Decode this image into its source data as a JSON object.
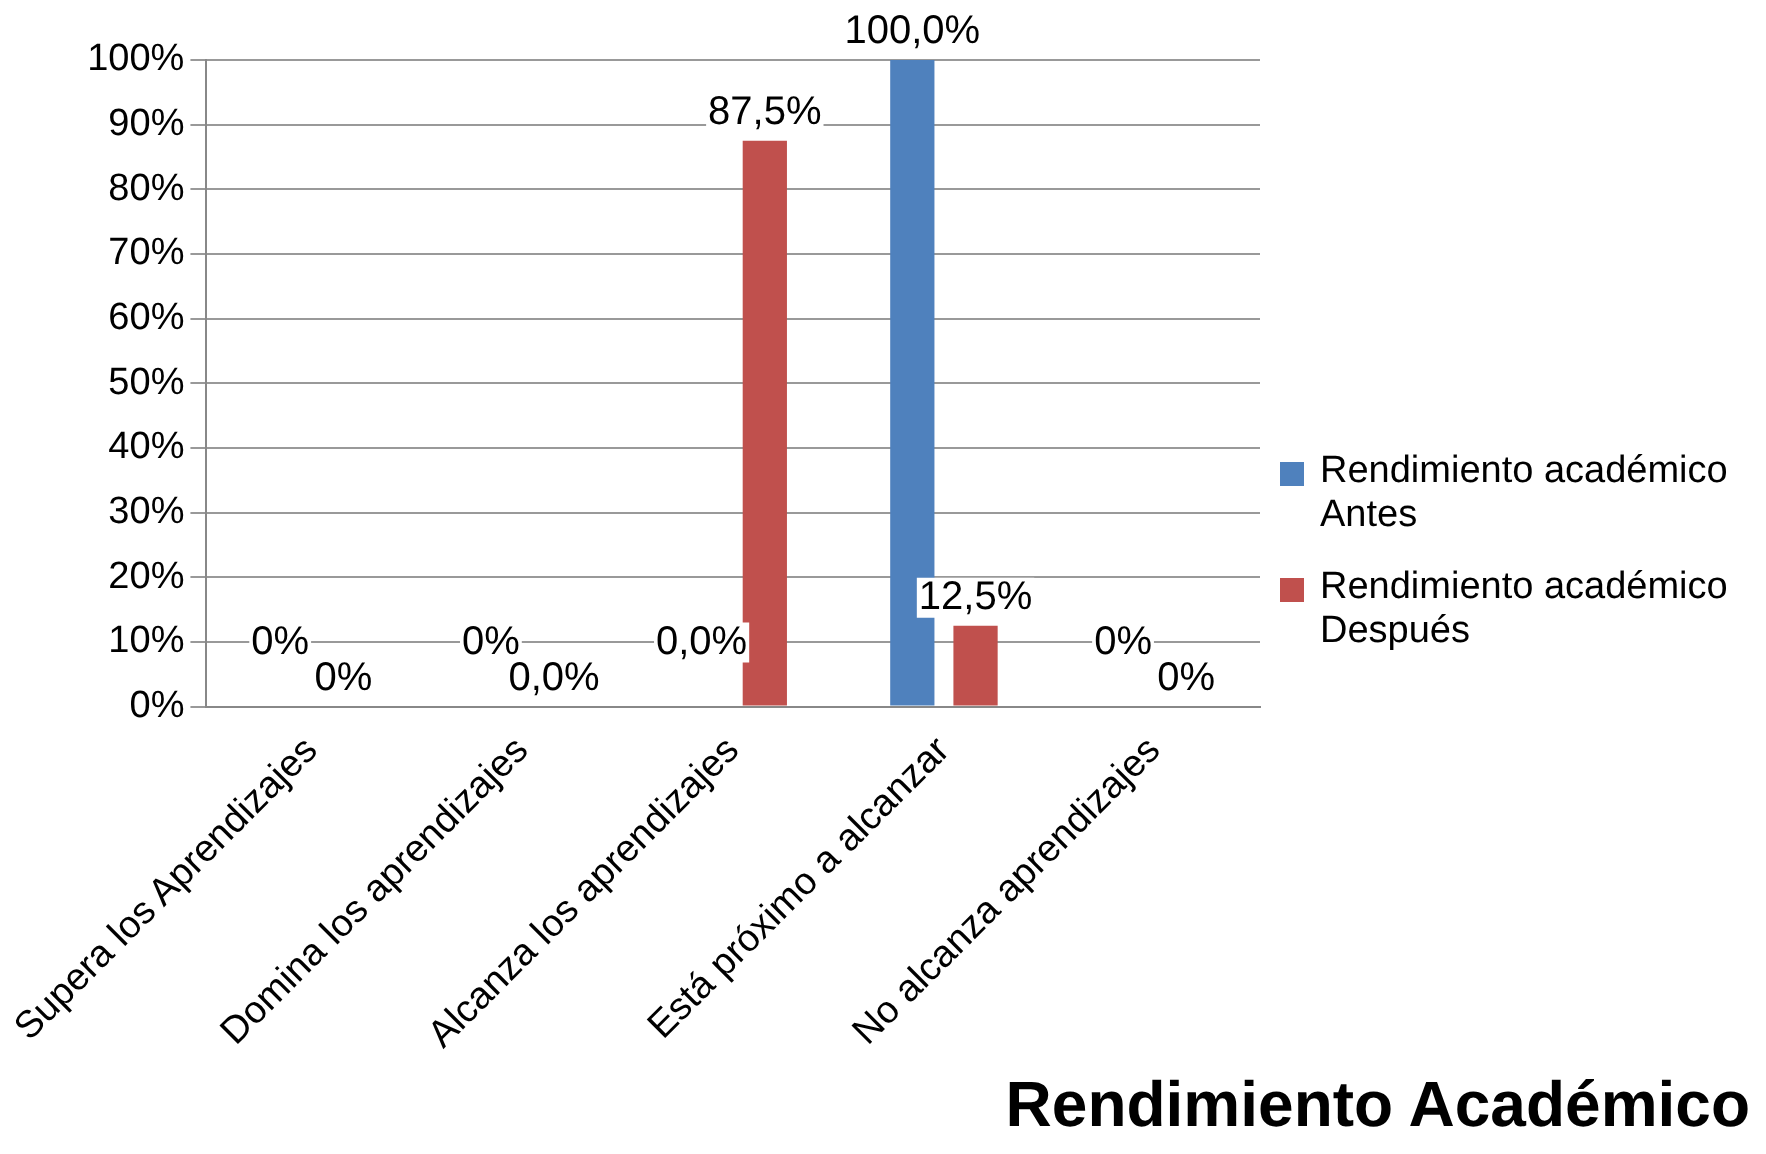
{
  "chart_data": {
    "type": "bar",
    "title": "Rendimiento Académico",
    "categories": [
      "Supera los Aprendizajes",
      "Domina los aprendizajes",
      "Alcanza los aprendizajes",
      "Está próximo a alcanzar",
      "No alcanza aprendizajes"
    ],
    "series": [
      {
        "name": "Rendimiento académico Antes",
        "color": "#4f81bd",
        "values": [
          0,
          0,
          0,
          100,
          0
        ],
        "value_labels": [
          "0%",
          "0%",
          "0,0%",
          "100,0%",
          "0%"
        ]
      },
      {
        "name": "Rendimiento académico Después",
        "color": "#c0504d",
        "values": [
          0,
          0,
          87.5,
          12.5,
          0
        ],
        "value_labels": [
          "0%",
          "0,0%",
          "87,5%",
          "12,5%",
          "0%"
        ]
      }
    ],
    "ylim": [
      0,
      100
    ],
    "yticks": [
      {
        "value": 0,
        "label": "0%"
      },
      {
        "value": 10,
        "label": "10%"
      },
      {
        "value": 20,
        "label": "20%"
      },
      {
        "value": 30,
        "label": "30%"
      },
      {
        "value": 40,
        "label": "40%"
      },
      {
        "value": 50,
        "label": "50%"
      },
      {
        "value": 60,
        "label": "60%"
      },
      {
        "value": 70,
        "label": "70%"
      },
      {
        "value": 80,
        "label": "80%"
      },
      {
        "value": 90,
        "label": "90%"
      },
      {
        "value": 100,
        "label": "100%"
      }
    ],
    "grid": "y",
    "legend": "right"
  }
}
